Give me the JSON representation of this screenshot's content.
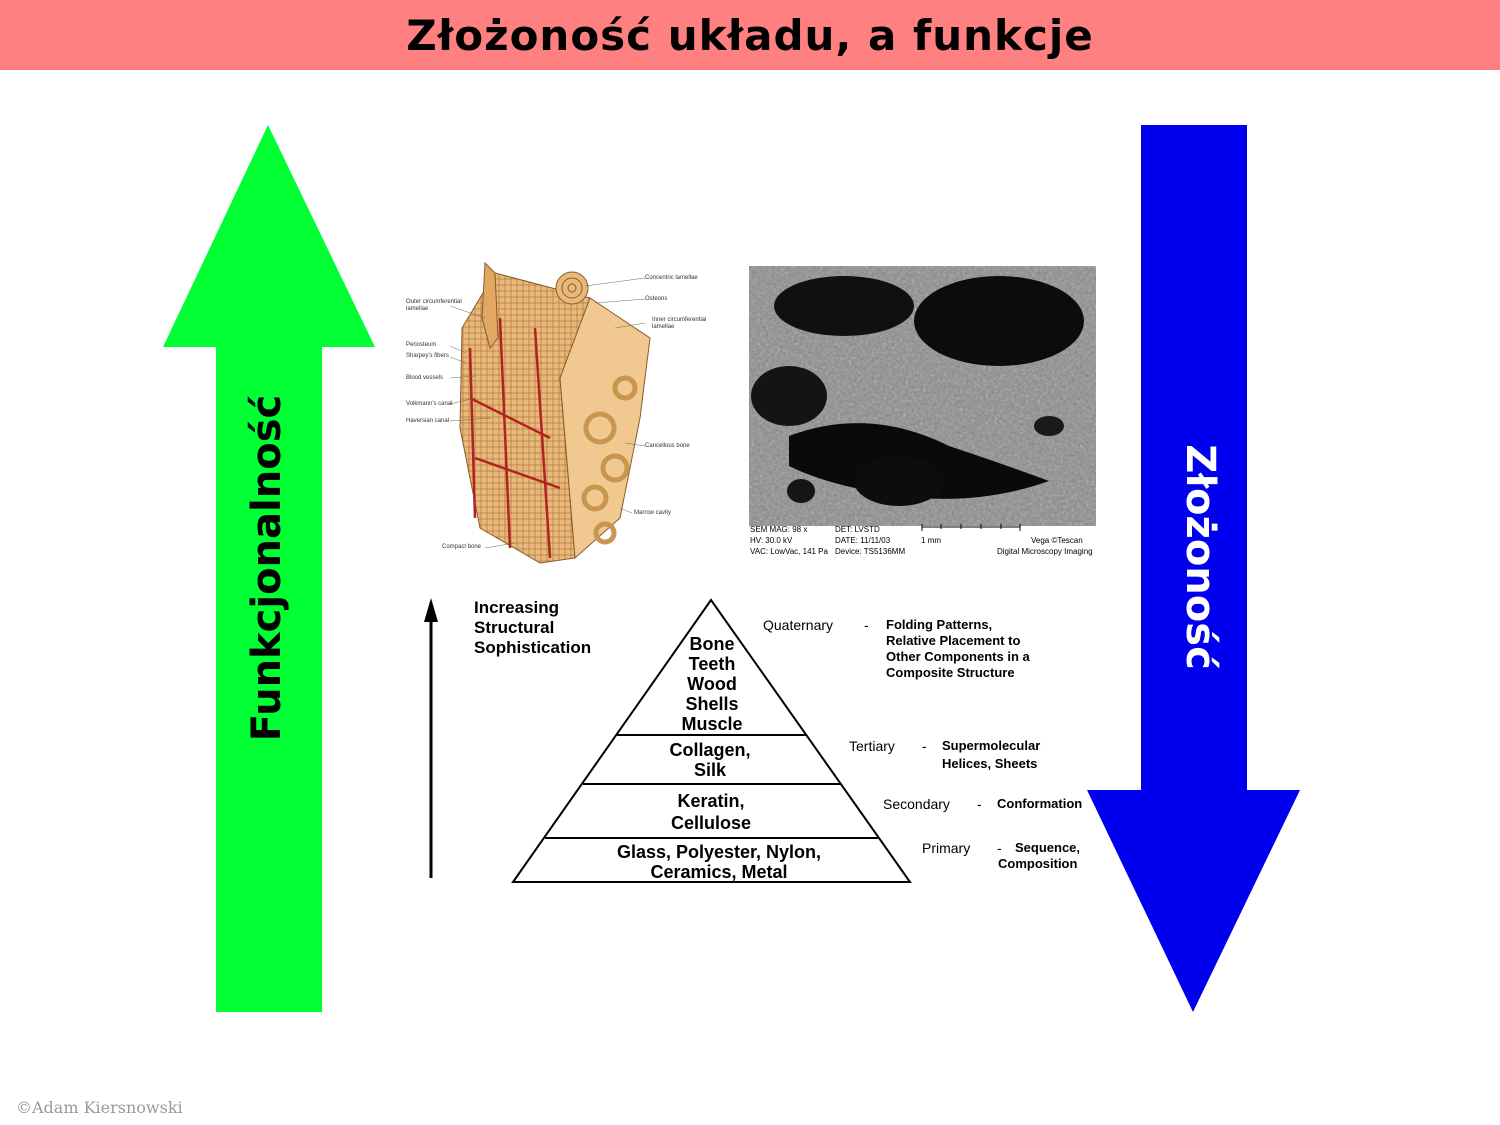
{
  "title": "Złożoność układu, a funkcje",
  "left_arrow": {
    "label": "Funkcjonalność",
    "color": "#00ff33",
    "direction": "up"
  },
  "right_arrow": {
    "label": "Złożoność",
    "color": "#0000ee",
    "direction": "down"
  },
  "bone_diagram": {
    "labels": {
      "concentric_lamellae": "Concentric lamellae",
      "osteons": "Osteons",
      "inner_circumferential": "Inner circumferential",
      "lamellae_inner": "lamellae",
      "outer_circumferential": "Outer circumferential",
      "lamellae_outer": "lamellae",
      "periosteum": "Periosteum",
      "sharpeys_fibers": "Sharpey's fibers",
      "blood_vessels": "Blood vessels",
      "volkmanns_canal": "Volkmann's canal",
      "haversian_canal": "Haversian canal",
      "cancellous_bone": "Cancellous bone",
      "marrow_cavity": "Marrow cavity",
      "compact_bone": "Compact bone"
    }
  },
  "sem_image": {
    "sem_mag": "SEM MAG: 98 x",
    "det": "DET: LVSTD",
    "hv": "HV: 30.0 kV",
    "date": "DATE: 11/11/03",
    "scale": "1 mm",
    "vega": "Vega ©Tescan",
    "vac": "VAC: LowVac, 141 Pa",
    "device": "Device: TS5136MM",
    "dmi": "Digital Microscopy Imaging"
  },
  "pyramid": {
    "axis_label": [
      "Increasing",
      "Structural",
      "Sophistication"
    ],
    "tiers": [
      {
        "lines": [
          "Bone",
          "Teeth",
          "Wood",
          "Shells",
          "Muscle"
        ],
        "level": "Quaternary",
        "dash": "-",
        "desc": [
          "Folding Patterns,",
          "Relative Placement to",
          "Other Components in a",
          "Composite Structure"
        ]
      },
      {
        "lines": [
          "Collagen,",
          "Silk"
        ],
        "level": "Tertiary",
        "dash": "-",
        "desc": [
          "Supermolecular",
          "Helices, Sheets"
        ]
      },
      {
        "lines": [
          "Keratin,",
          "Cellulose"
        ],
        "level": "Secondary",
        "dash": "-",
        "desc": [
          "Conformation"
        ]
      },
      {
        "lines": [
          "Glass, Polyester, Nylon,",
          "Ceramics, Metal"
        ],
        "level": "Primary",
        "dash": "-",
        "desc": [
          "Sequence,",
          "Composition"
        ]
      }
    ]
  },
  "copyright": "©Adam Kiersnowski"
}
